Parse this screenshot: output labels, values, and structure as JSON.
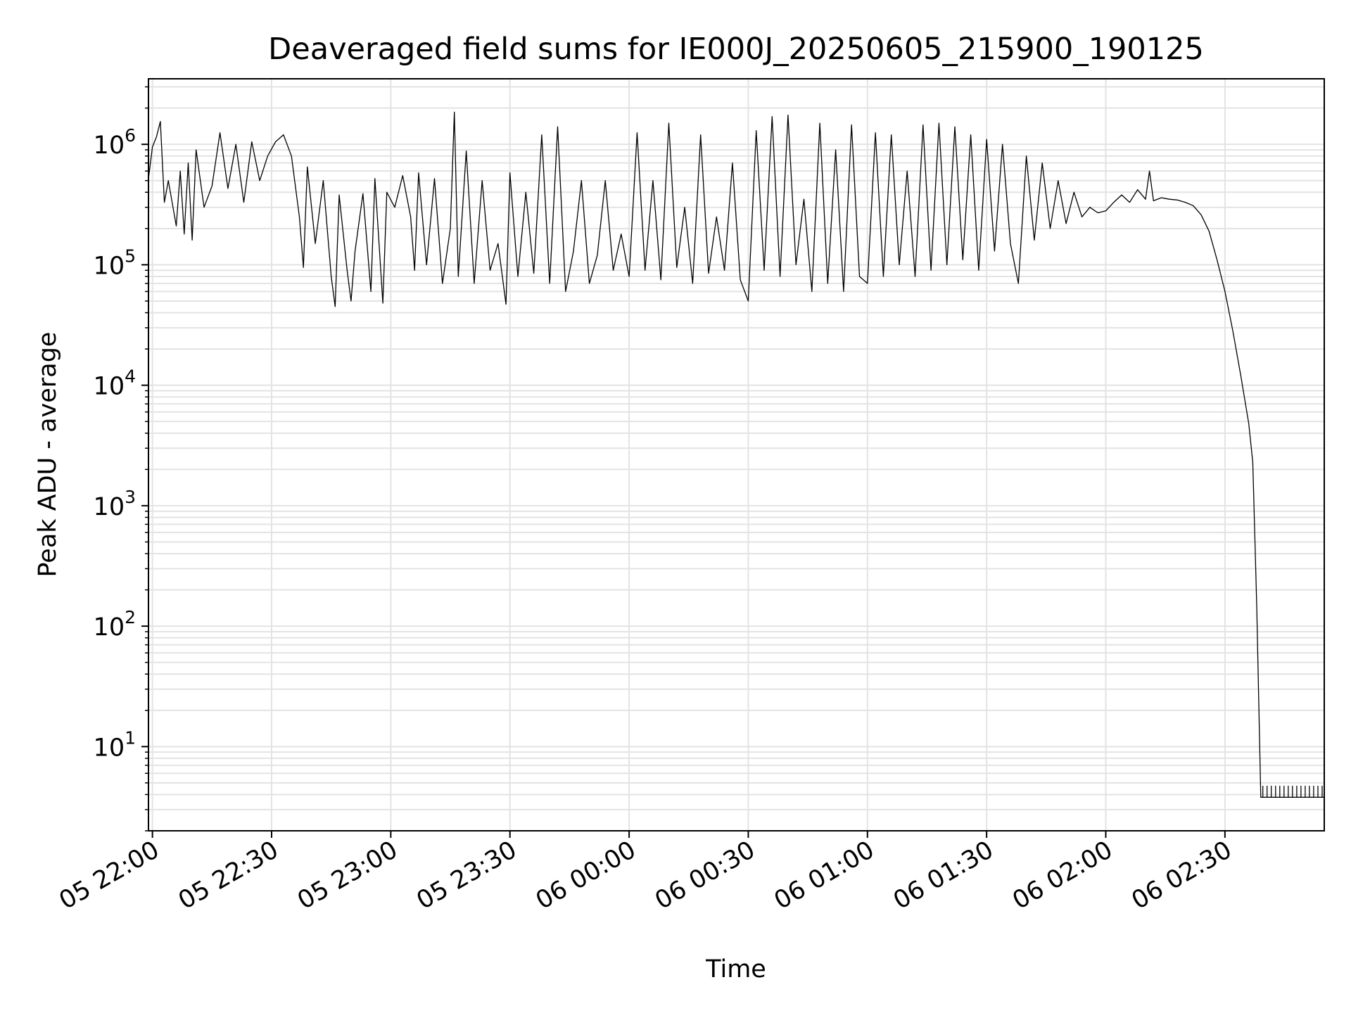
{
  "chart_data": {
    "type": "line",
    "title": "Deaveraged field sums for IE000J_20250605_215900_190125",
    "xlabel": "Time",
    "ylabel": "Peak ADU - average",
    "yscale": "log",
    "grid": true,
    "xlim": [
      "2025-06-05 21:59",
      "2025-06-06 02:55"
    ],
    "ylim": [
      2,
      3500000
    ],
    "x_ticks": [
      {
        "value": "2025-06-05 22:00",
        "label": "05 22:00"
      },
      {
        "value": "2025-06-05 22:30",
        "label": "05 22:30"
      },
      {
        "value": "2025-06-05 23:00",
        "label": "05 23:00"
      },
      {
        "value": "2025-06-05 23:30",
        "label": "05 23:30"
      },
      {
        "value": "2025-06-06 00:00",
        "label": "06 00:00"
      },
      {
        "value": "2025-06-06 00:30",
        "label": "06 00:30"
      },
      {
        "value": "2025-06-06 01:00",
        "label": "06 01:00"
      },
      {
        "value": "2025-06-06 01:30",
        "label": "06 01:30"
      },
      {
        "value": "2025-06-06 02:00",
        "label": "06 02:00"
      },
      {
        "value": "2025-06-06 02:30",
        "label": "06 02:30"
      }
    ],
    "y_ticks": [
      {
        "value": 10,
        "base": "10",
        "exp": "1"
      },
      {
        "value": 100,
        "base": "10",
        "exp": "2"
      },
      {
        "value": 1000,
        "base": "10",
        "exp": "3"
      },
      {
        "value": 10000,
        "base": "10",
        "exp": "4"
      },
      {
        "value": 100000,
        "base": "10",
        "exp": "5"
      },
      {
        "value": 1000000,
        "base": "10",
        "exp": "6"
      }
    ],
    "series": [
      {
        "color": "#000000",
        "points": [
          [
            "2025-06-05 21:59",
            520000
          ],
          [
            "2025-06-05 22:00",
            950000
          ],
          [
            "2025-06-05 22:01",
            1150000
          ],
          [
            "2025-06-05 22:02",
            1550000
          ],
          [
            "2025-06-05 22:03",
            330000
          ],
          [
            "2025-06-05 22:04",
            500000
          ],
          [
            "2025-06-05 22:06",
            210000
          ],
          [
            "2025-06-05 22:07",
            600000
          ],
          [
            "2025-06-05 22:08",
            180000
          ],
          [
            "2025-06-05 22:09",
            700000
          ],
          [
            "2025-06-05 22:10",
            160000
          ],
          [
            "2025-06-05 22:11",
            900000
          ],
          [
            "2025-06-05 22:13",
            300000
          ],
          [
            "2025-06-05 22:15",
            450000
          ],
          [
            "2025-06-05 22:17",
            1250000
          ],
          [
            "2025-06-05 22:19",
            430000
          ],
          [
            "2025-06-05 22:21",
            1000000
          ],
          [
            "2025-06-05 22:23",
            330000
          ],
          [
            "2025-06-05 22:25",
            1050000
          ],
          [
            "2025-06-05 22:27",
            500000
          ],
          [
            "2025-06-05 22:29",
            800000
          ],
          [
            "2025-06-05 22:31",
            1050000
          ],
          [
            "2025-06-05 22:33",
            1200000
          ],
          [
            "2025-06-05 22:35",
            800000
          ],
          [
            "2025-06-05 22:37",
            250000
          ],
          [
            "2025-06-05 22:38",
            95000
          ],
          [
            "2025-06-05 22:39",
            650000
          ],
          [
            "2025-06-05 22:41",
            150000
          ],
          [
            "2025-06-05 22:43",
            500000
          ],
          [
            "2025-06-05 22:45",
            80000
          ],
          [
            "2025-06-05 22:46",
            45000
          ],
          [
            "2025-06-05 22:47",
            380000
          ],
          [
            "2025-06-05 22:49",
            90000
          ],
          [
            "2025-06-05 22:50",
            50000
          ],
          [
            "2025-06-05 22:51",
            130000
          ],
          [
            "2025-06-05 22:53",
            390000
          ],
          [
            "2025-06-05 22:55",
            60000
          ],
          [
            "2025-06-05 22:56",
            520000
          ],
          [
            "2025-06-05 22:58",
            48000
          ],
          [
            "2025-06-05 22:59",
            400000
          ],
          [
            "2025-06-05 23:01",
            300000
          ],
          [
            "2025-06-05 23:03",
            550000
          ],
          [
            "2025-06-05 23:05",
            250000
          ],
          [
            "2025-06-05 23:06",
            90000
          ],
          [
            "2025-06-05 23:07",
            580000
          ],
          [
            "2025-06-05 23:09",
            100000
          ],
          [
            "2025-06-05 23:11",
            520000
          ],
          [
            "2025-06-05 23:13",
            70000
          ],
          [
            "2025-06-05 23:15",
            200000
          ],
          [
            "2025-06-05 23:16",
            1850000
          ],
          [
            "2025-06-05 23:17",
            80000
          ],
          [
            "2025-06-05 23:19",
            880000
          ],
          [
            "2025-06-05 23:21",
            70000
          ],
          [
            "2025-06-05 23:23",
            500000
          ],
          [
            "2025-06-05 23:25",
            90000
          ],
          [
            "2025-06-05 23:27",
            150000
          ],
          [
            "2025-06-05 23:29",
            47000
          ],
          [
            "2025-06-05 23:30",
            580000
          ],
          [
            "2025-06-05 23:32",
            80000
          ],
          [
            "2025-06-05 23:34",
            400000
          ],
          [
            "2025-06-05 23:36",
            85000
          ],
          [
            "2025-06-05 23:38",
            1200000
          ],
          [
            "2025-06-05 23:40",
            70000
          ],
          [
            "2025-06-05 23:42",
            1400000
          ],
          [
            "2025-06-05 23:44",
            60000
          ],
          [
            "2025-06-05 23:46",
            130000
          ],
          [
            "2025-06-05 23:48",
            500000
          ],
          [
            "2025-06-05 23:50",
            70000
          ],
          [
            "2025-06-05 23:52",
            120000
          ],
          [
            "2025-06-05 23:54",
            500000
          ],
          [
            "2025-06-05 23:56",
            90000
          ],
          [
            "2025-06-05 23:58",
            180000
          ],
          [
            "2025-06-06 00:00",
            80000
          ],
          [
            "2025-06-06 00:02",
            1250000
          ],
          [
            "2025-06-06 00:04",
            90000
          ],
          [
            "2025-06-06 00:06",
            500000
          ],
          [
            "2025-06-06 00:08",
            75000
          ],
          [
            "2025-06-06 00:10",
            1500000
          ],
          [
            "2025-06-06 00:12",
            95000
          ],
          [
            "2025-06-06 00:14",
            300000
          ],
          [
            "2025-06-06 00:16",
            70000
          ],
          [
            "2025-06-06 00:18",
            1200000
          ],
          [
            "2025-06-06 00:20",
            85000
          ],
          [
            "2025-06-06 00:22",
            250000
          ],
          [
            "2025-06-06 00:24",
            90000
          ],
          [
            "2025-06-06 00:26",
            700000
          ],
          [
            "2025-06-06 00:28",
            75000
          ],
          [
            "2025-06-06 00:30",
            50000
          ],
          [
            "2025-06-06 00:32",
            1300000
          ],
          [
            "2025-06-06 00:34",
            90000
          ],
          [
            "2025-06-06 00:36",
            1700000
          ],
          [
            "2025-06-06 00:38",
            80000
          ],
          [
            "2025-06-06 00:40",
            1750000
          ],
          [
            "2025-06-06 00:42",
            100000
          ],
          [
            "2025-06-06 00:44",
            350000
          ],
          [
            "2025-06-06 00:46",
            60000
          ],
          [
            "2025-06-06 00:48",
            1500000
          ],
          [
            "2025-06-06 00:50",
            70000
          ],
          [
            "2025-06-06 00:52",
            900000
          ],
          [
            "2025-06-06 00:54",
            60000
          ],
          [
            "2025-06-06 00:56",
            1450000
          ],
          [
            "2025-06-06 00:58",
            80000
          ],
          [
            "2025-06-06 01:00",
            70000
          ],
          [
            "2025-06-06 01:02",
            1250000
          ],
          [
            "2025-06-06 01:04",
            80000
          ],
          [
            "2025-06-06 01:06",
            1200000
          ],
          [
            "2025-06-06 01:08",
            100000
          ],
          [
            "2025-06-06 01:10",
            600000
          ],
          [
            "2025-06-06 01:12",
            80000
          ],
          [
            "2025-06-06 01:14",
            1450000
          ],
          [
            "2025-06-06 01:16",
            90000
          ],
          [
            "2025-06-06 01:18",
            1500000
          ],
          [
            "2025-06-06 01:20",
            100000
          ],
          [
            "2025-06-06 01:22",
            1400000
          ],
          [
            "2025-06-06 01:24",
            110000
          ],
          [
            "2025-06-06 01:26",
            1200000
          ],
          [
            "2025-06-06 01:28",
            90000
          ],
          [
            "2025-06-06 01:30",
            1100000
          ],
          [
            "2025-06-06 01:32",
            130000
          ],
          [
            "2025-06-06 01:34",
            1000000
          ],
          [
            "2025-06-06 01:36",
            150000
          ],
          [
            "2025-06-06 01:38",
            70000
          ],
          [
            "2025-06-06 01:40",
            800000
          ],
          [
            "2025-06-06 01:42",
            160000
          ],
          [
            "2025-06-06 01:44",
            700000
          ],
          [
            "2025-06-06 01:46",
            200000
          ],
          [
            "2025-06-06 01:48",
            500000
          ],
          [
            "2025-06-06 01:50",
            220000
          ],
          [
            "2025-06-06 01:52",
            400000
          ],
          [
            "2025-06-06 01:54",
            250000
          ],
          [
            "2025-06-06 01:56",
            300000
          ],
          [
            "2025-06-06 01:58",
            270000
          ],
          [
            "2025-06-06 02:00",
            280000
          ],
          [
            "2025-06-06 02:02",
            330000
          ],
          [
            "2025-06-06 02:04",
            380000
          ],
          [
            "2025-06-06 02:06",
            330000
          ],
          [
            "2025-06-06 02:08",
            420000
          ],
          [
            "2025-06-06 02:10",
            350000
          ],
          [
            "2025-06-06 02:11",
            600000
          ],
          [
            "2025-06-06 02:12",
            340000
          ],
          [
            "2025-06-06 02:14",
            360000
          ],
          [
            "2025-06-06 02:16",
            350000
          ],
          [
            "2025-06-06 02:18",
            345000
          ],
          [
            "2025-06-06 02:20",
            330000
          ],
          [
            "2025-06-06 02:22",
            310000
          ],
          [
            "2025-06-06 02:24",
            260000
          ],
          [
            "2025-06-06 02:26",
            190000
          ],
          [
            "2025-06-06 02:28",
            110000
          ],
          [
            "2025-06-06 02:30",
            60000
          ],
          [
            "2025-06-06 02:32",
            28000
          ],
          [
            "2025-06-06 02:34",
            12000
          ],
          [
            "2025-06-06 02:36",
            4800
          ],
          [
            "2025-06-06 02:37",
            2300
          ],
          [
            "2025-06-06 02:38",
            150
          ],
          [
            "2025-06-06 02:39",
            4
          ]
        ],
        "floor": {
          "from": "2025-06-06 02:39",
          "to": "2025-06-06 02:55",
          "base": 3.8,
          "spike": 4.7,
          "spike_count": 15
        }
      }
    ]
  }
}
